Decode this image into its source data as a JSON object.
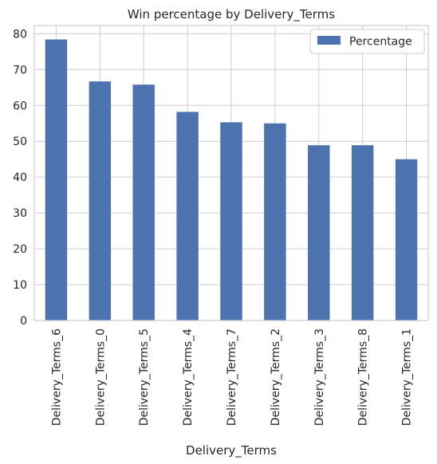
{
  "chart_data": {
    "type": "bar",
    "title": "Win percentage by Delivery_Terms",
    "xlabel": "Delivery_Terms",
    "ylabel": "",
    "categories": [
      "Delivery_Terms_6",
      "Delivery_Terms_0",
      "Delivery_Terms_5",
      "Delivery_Terms_4",
      "Delivery_Terms_7",
      "Delivery_Terms_2",
      "Delivery_Terms_3",
      "Delivery_Terms_8",
      "Delivery_Terms_1"
    ],
    "series": [
      {
        "name": "Percentage",
        "values": [
          78.4,
          66.7,
          65.8,
          58.2,
          55.3,
          55.0,
          48.9,
          48.9,
          45.0
        ]
      }
    ],
    "ylim": [
      0,
      82.3
    ],
    "yticks": [
      0,
      10,
      20,
      30,
      40,
      50,
      60,
      70,
      80
    ],
    "grid": true,
    "legend_position": "top-right",
    "colors": {
      "bar": "#4c72b0",
      "grid": "#cccccc",
      "axis": "#cccccc",
      "background": "#ffffff",
      "text": "#262626"
    }
  }
}
